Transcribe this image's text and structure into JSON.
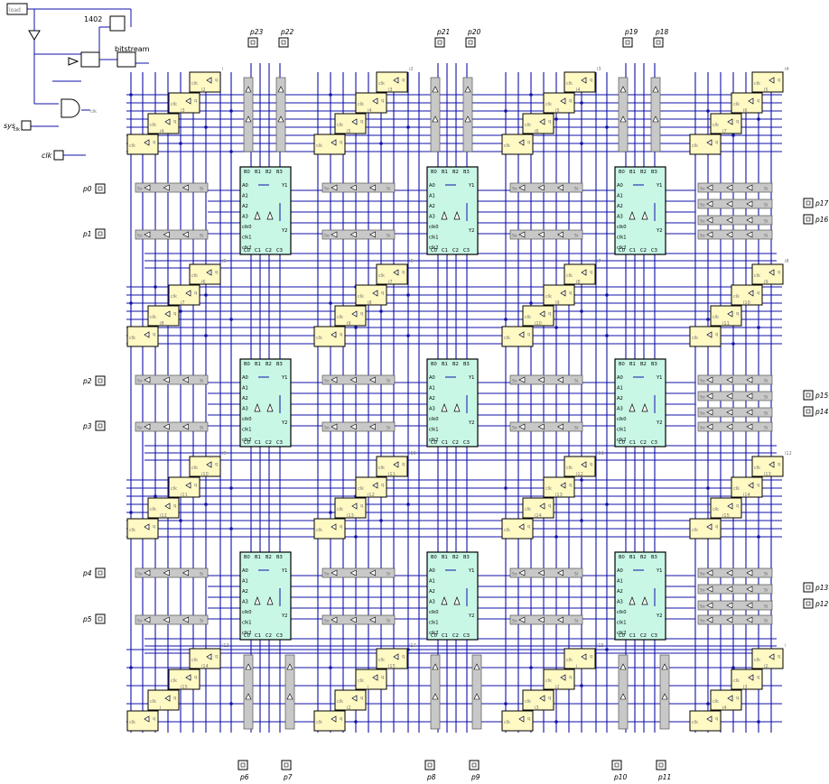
{
  "header": {
    "counter_label": "1402",
    "bitstream_label": "bitstream",
    "sys_clk_label": "sys",
    "sys_clk_sub": "clk",
    "clk_label": "clk",
    "clk_out_label": "clk",
    "load_label": "load"
  },
  "pins": {
    "left": [
      "p0",
      "p1",
      "p2",
      "p3",
      "p4",
      "p5"
    ],
    "right": [
      "p17",
      "p16",
      "p15",
      "p14",
      "p13",
      "p12"
    ],
    "top": [
      "p23",
      "p22",
      "p21",
      "p20",
      "p19",
      "p18"
    ],
    "bottom": [
      "p6",
      "p7",
      "p8",
      "p9",
      "p10",
      "p11"
    ]
  },
  "lut": {
    "top_ports": [
      "B0",
      "B1",
      "B2",
      "B3"
    ],
    "left_ports": [
      "A0",
      "A1",
      "A2",
      "A3",
      "clk0",
      "clk1",
      "clk2"
    ],
    "right_ports": [
      "Y1",
      "Y2"
    ],
    "bottom_ports": [
      "C0",
      "C1",
      "C2",
      "C3"
    ]
  },
  "cell_labels": {
    "clk": "clk",
    "d": "d",
    "q": "q",
    "si": "Si",
    "so": "So"
  },
  "wire_tags": [
    "i",
    "i2",
    "i3",
    "i4",
    "i5",
    "i6",
    "i7",
    "i8",
    "i9",
    "i10",
    "i11",
    "i12",
    "i13",
    "i14",
    "i15"
  ],
  "colors": {
    "wire": "#1010a8",
    "lut_fill": "#c8f7e6",
    "cell_fill": "#fff9c4",
    "reg_fill": "#c8c8c8",
    "text": "#000000",
    "faint_text": "#777777"
  }
}
